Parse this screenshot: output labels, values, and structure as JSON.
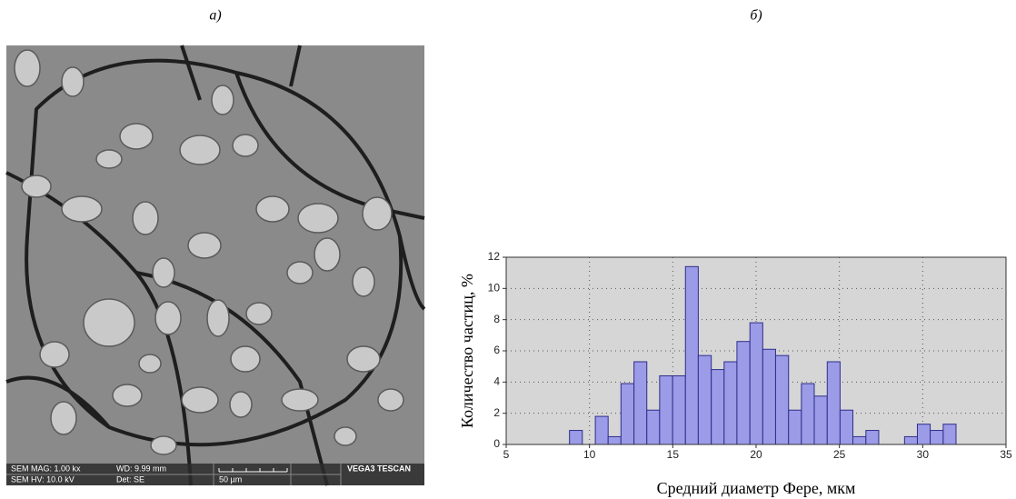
{
  "panel_labels": [
    "а)",
    "б)"
  ],
  "sem_image": {
    "info": [
      "SEM MAG: 1.00 kx",
      "WD: 9.99 mm",
      "VEGA3 TESCAN",
      "SEM HV: 10.0 kV",
      "Det: SE",
      "50 µm"
    ]
  },
  "chart_data": {
    "type": "histogram",
    "xlabel": "Средний диаметр Фере, мкм",
    "ylabel": "Количество частиц, %",
    "bins": [
      8.8,
      9.57,
      10.35,
      11.12,
      11.89,
      12.67,
      13.44,
      14.21,
      14.99,
      15.76,
      16.53,
      17.31,
      18.08,
      18.85,
      19.63,
      20.4,
      21.17,
      21.95,
      22.72,
      23.49,
      24.27,
      25.04,
      25.81,
      26.59,
      27.36,
      28.13,
      28.91,
      29.68,
      30.45,
      31.23,
      32.0
    ],
    "values": [
      0.9,
      0,
      1.8,
      0.5,
      3.9,
      5.3,
      2.2,
      4.4,
      4.4,
      11.4,
      5.7,
      4.8,
      5.3,
      6.6,
      7.8,
      6.1,
      5.7,
      2.2,
      3.9,
      3.1,
      5.3,
      2.2,
      0.5,
      0.9,
      0,
      0,
      0.5,
      1.3,
      0.9,
      1.3
    ],
    "color": "#9b9be8",
    "edgecolor": "#2e2e8a",
    "xlim": [
      5,
      35
    ],
    "xticks": [
      5,
      10,
      15,
      20,
      25,
      30,
      35
    ],
    "ylim": [
      0,
      12
    ],
    "yticks": [
      0,
      2,
      4,
      6,
      8,
      10,
      12
    ],
    "grid": true
  }
}
